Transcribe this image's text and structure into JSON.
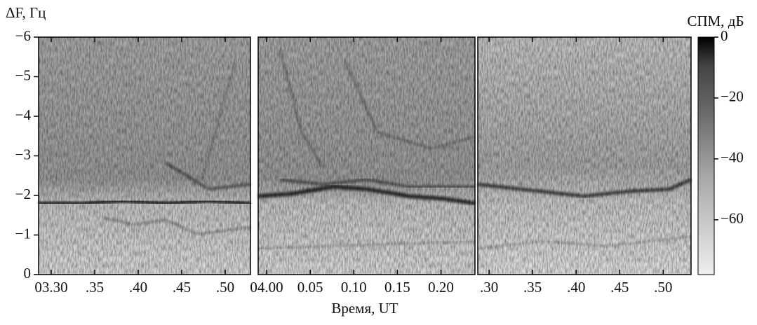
{
  "chart_data": {
    "type": "spectrogram",
    "y_label": "ΔF, Гц",
    "x_label": "Время, UT",
    "ylim": [
      0,
      -6
    ],
    "yticks": [
      {
        "value": -6,
        "label": "−6"
      },
      {
        "value": -5,
        "label": "−5"
      },
      {
        "value": -4,
        "label": "−4"
      },
      {
        "value": -3,
        "label": "−3"
      },
      {
        "value": -2,
        "label": "−2"
      },
      {
        "value": -1,
        "label": "−1"
      },
      0
    ],
    "panels": [
      {
        "xlim": [
          28.55,
          52.9
        ],
        "xticks": [
          {
            "value": 30,
            "label": "03.30"
          },
          {
            "value": 35,
            "label": ".35"
          },
          {
            "value": 40,
            "label": ".40"
          },
          {
            "value": 45,
            "label": ".45"
          },
          {
            "value": 50,
            "label": ".50"
          }
        ]
      },
      {
        "xlim": [
          -0.97,
          23.9
        ],
        "xticks": [
          {
            "value": 0,
            "label": "04.00"
          },
          {
            "value": 5,
            "label": "0.05"
          },
          {
            "value": 10,
            "label": "0.10"
          },
          {
            "value": 15,
            "label": "0.15"
          },
          {
            "value": 20,
            "label": "0.20"
          }
        ]
      },
      {
        "xlim": [
          28.7,
          53.2
        ],
        "xticks": [
          {
            "value": 30,
            "label": ".30"
          },
          {
            "value": 35,
            "label": ".35"
          },
          {
            "value": 40,
            "label": ".40"
          },
          {
            "value": 45,
            "label": ".45"
          },
          {
            "value": 50,
            "label": ".50"
          }
        ]
      }
    ],
    "colorbar": {
      "label": "СПМ, дБ",
      "clim": [
        -78,
        0
      ],
      "ticks": [
        0,
        {
          "value": -20,
          "label": "−20"
        },
        {
          "value": -40,
          "label": "−40"
        },
        {
          "value": -60,
          "label": "−60"
        }
      ]
    }
  }
}
